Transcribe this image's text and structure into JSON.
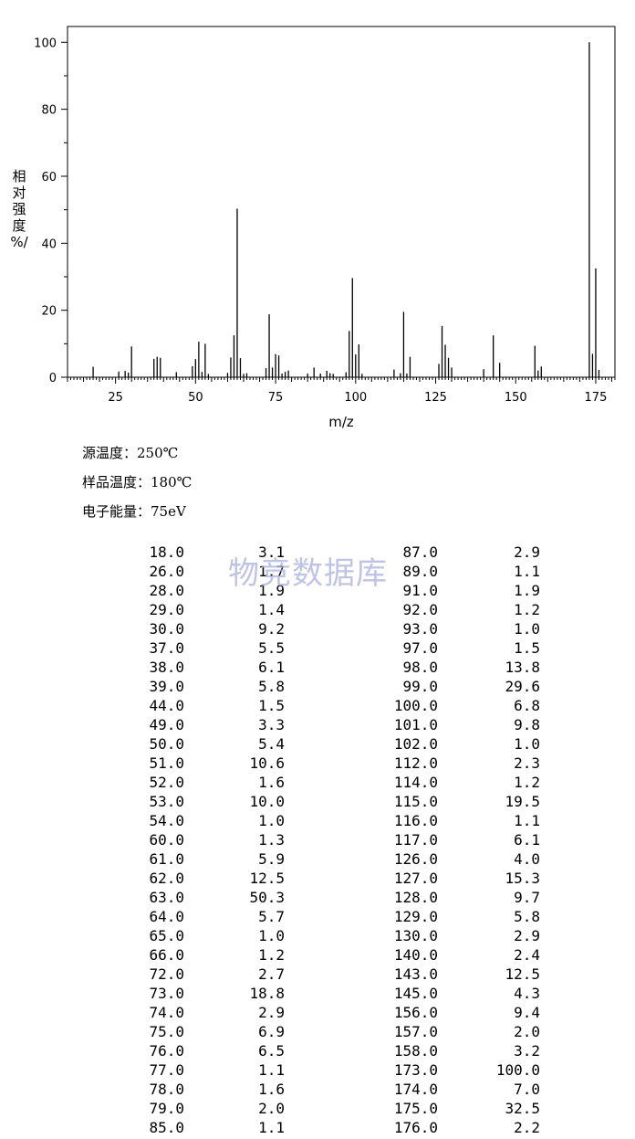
{
  "chart_data": {
    "type": "bar",
    "xlabel": "m/z",
    "ylabel_chars": [
      "相",
      "对",
      "强",
      "度",
      "%/"
    ],
    "xlim": [
      10,
      181
    ],
    "ylim": [
      0,
      100
    ],
    "xticks": [
      25,
      50,
      75,
      100,
      125,
      150,
      175
    ],
    "yticks": [
      0,
      20,
      40,
      60,
      80,
      100
    ],
    "peaks": [
      [
        18.0,
        3.1
      ],
      [
        26.0,
        1.7
      ],
      [
        28.0,
        1.9
      ],
      [
        29.0,
        1.4
      ],
      [
        30.0,
        9.2
      ],
      [
        37.0,
        5.5
      ],
      [
        38.0,
        6.1
      ],
      [
        39.0,
        5.8
      ],
      [
        44.0,
        1.5
      ],
      [
        49.0,
        3.3
      ],
      [
        50.0,
        5.4
      ],
      [
        51.0,
        10.6
      ],
      [
        52.0,
        1.6
      ],
      [
        53.0,
        10.0
      ],
      [
        54.0,
        1.0
      ],
      [
        60.0,
        1.3
      ],
      [
        61.0,
        5.9
      ],
      [
        62.0,
        12.5
      ],
      [
        63.0,
        50.3
      ],
      [
        64.0,
        5.7
      ],
      [
        65.0,
        1.0
      ],
      [
        66.0,
        1.2
      ],
      [
        72.0,
        2.7
      ],
      [
        73.0,
        18.8
      ],
      [
        74.0,
        2.9
      ],
      [
        75.0,
        6.9
      ],
      [
        76.0,
        6.5
      ],
      [
        77.0,
        1.1
      ],
      [
        78.0,
        1.6
      ],
      [
        79.0,
        2.0
      ],
      [
        85.0,
        1.1
      ],
      [
        87.0,
        2.9
      ],
      [
        89.0,
        1.1
      ],
      [
        91.0,
        1.9
      ],
      [
        92.0,
        1.2
      ],
      [
        93.0,
        1.0
      ],
      [
        97.0,
        1.5
      ],
      [
        98.0,
        13.8
      ],
      [
        99.0,
        29.6
      ],
      [
        100.0,
        6.8
      ],
      [
        101.0,
        9.8
      ],
      [
        102.0,
        1.0
      ],
      [
        112.0,
        2.3
      ],
      [
        114.0,
        1.2
      ],
      [
        115.0,
        19.5
      ],
      [
        116.0,
        1.1
      ],
      [
        117.0,
        6.1
      ],
      [
        126.0,
        4.0
      ],
      [
        127.0,
        15.3
      ],
      [
        128.0,
        9.7
      ],
      [
        129.0,
        5.8
      ],
      [
        130.0,
        2.9
      ],
      [
        140.0,
        2.4
      ],
      [
        143.0,
        12.5
      ],
      [
        145.0,
        4.3
      ],
      [
        156.0,
        9.4
      ],
      [
        157.0,
        2.0
      ],
      [
        158.0,
        3.2
      ],
      [
        173.0,
        100.0
      ],
      [
        174.0,
        7.0
      ],
      [
        175.0,
        32.5
      ],
      [
        176.0,
        2.2
      ]
    ]
  },
  "conditions": [
    {
      "label": "源温度：",
      "value": "250℃"
    },
    {
      "label": "样品温度：",
      "value": "180℃"
    },
    {
      "label": "电子能量：",
      "value": "75eV"
    }
  ],
  "watermark": "物竞数据库",
  "table_rows": [
    [
      "18.0",
      "3.1",
      "87.0",
      "2.9"
    ],
    [
      "26.0",
      "1.7",
      "89.0",
      "1.1"
    ],
    [
      "28.0",
      "1.9",
      "91.0",
      "1.9"
    ],
    [
      "29.0",
      "1.4",
      "92.0",
      "1.2"
    ],
    [
      "30.0",
      "9.2",
      "93.0",
      "1.0"
    ],
    [
      "37.0",
      "5.5",
      "97.0",
      "1.5"
    ],
    [
      "38.0",
      "6.1",
      "98.0",
      "13.8"
    ],
    [
      "39.0",
      "5.8",
      "99.0",
      "29.6"
    ],
    [
      "44.0",
      "1.5",
      "100.0",
      "6.8"
    ],
    [
      "49.0",
      "3.3",
      "101.0",
      "9.8"
    ],
    [
      "50.0",
      "5.4",
      "102.0",
      "1.0"
    ],
    [
      "51.0",
      "10.6",
      "112.0",
      "2.3"
    ],
    [
      "52.0",
      "1.6",
      "114.0",
      "1.2"
    ],
    [
      "53.0",
      "10.0",
      "115.0",
      "19.5"
    ],
    [
      "54.0",
      "1.0",
      "116.0",
      "1.1"
    ],
    [
      "60.0",
      "1.3",
      "117.0",
      "6.1"
    ],
    [
      "61.0",
      "5.9",
      "126.0",
      "4.0"
    ],
    [
      "62.0",
      "12.5",
      "127.0",
      "15.3"
    ],
    [
      "63.0",
      "50.3",
      "128.0",
      "9.7"
    ],
    [
      "64.0",
      "5.7",
      "129.0",
      "5.8"
    ],
    [
      "65.0",
      "1.0",
      "130.0",
      "2.9"
    ],
    [
      "66.0",
      "1.2",
      "140.0",
      "2.4"
    ],
    [
      "72.0",
      "2.7",
      "143.0",
      "12.5"
    ],
    [
      "73.0",
      "18.8",
      "145.0",
      "4.3"
    ],
    [
      "74.0",
      "2.9",
      "156.0",
      "9.4"
    ],
    [
      "75.0",
      "6.9",
      "157.0",
      "2.0"
    ],
    [
      "76.0",
      "6.5",
      "158.0",
      "3.2"
    ],
    [
      "77.0",
      "1.1",
      "173.0",
      "100.0"
    ],
    [
      "78.0",
      "1.6",
      "174.0",
      "7.0"
    ],
    [
      "79.0",
      "2.0",
      "175.0",
      "32.5"
    ],
    [
      "85.0",
      "1.1",
      "176.0",
      "2.2"
    ]
  ]
}
